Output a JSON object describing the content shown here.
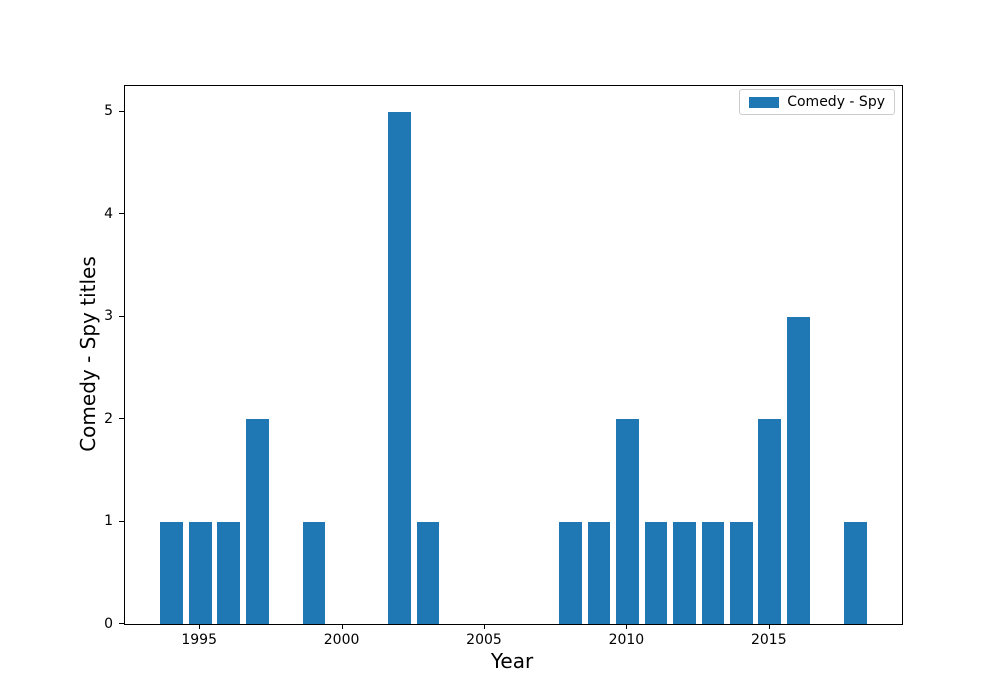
{
  "chart_data": {
    "type": "bar",
    "title": "",
    "xlabel": "Year",
    "ylabel": "Comedy - Spy titles",
    "x": [
      1994,
      1995,
      1996,
      1997,
      1998,
      1999,
      2000,
      2001,
      2002,
      2003,
      2004,
      2005,
      2006,
      2007,
      2008,
      2009,
      2010,
      2011,
      2012,
      2013,
      2014,
      2015,
      2016,
      2017,
      2018
    ],
    "values": [
      1,
      1,
      1,
      2,
      0,
      1,
      0,
      0,
      5,
      1,
      0,
      0,
      0,
      0,
      1,
      1,
      2,
      1,
      1,
      1,
      1,
      2,
      3,
      0,
      1
    ],
    "series": [
      {
        "name": "Comedy - Spy",
        "values": [
          1,
          1,
          1,
          2,
          0,
          1,
          0,
          0,
          5,
          1,
          0,
          0,
          0,
          0,
          1,
          1,
          2,
          1,
          1,
          1,
          1,
          2,
          3,
          0,
          1
        ]
      }
    ],
    "xtick_values": [
      1995,
      2000,
      2005,
      2010,
      2015
    ],
    "xtick_labels": [
      "1995",
      "2000",
      "2005",
      "2010",
      "2015"
    ],
    "ytick_values": [
      0,
      1,
      2,
      3,
      4,
      5
    ],
    "ytick_labels": [
      "0",
      "1",
      "2",
      "3",
      "4",
      "5"
    ],
    "xlim": [
      1992.36,
      2019.64
    ],
    "ylim": [
      0,
      5.25
    ],
    "bar_width": 0.8,
    "bar_color": "#1f77b4",
    "grid": false,
    "legend": {
      "label": "Comedy - Spy",
      "position": "upper right"
    }
  }
}
